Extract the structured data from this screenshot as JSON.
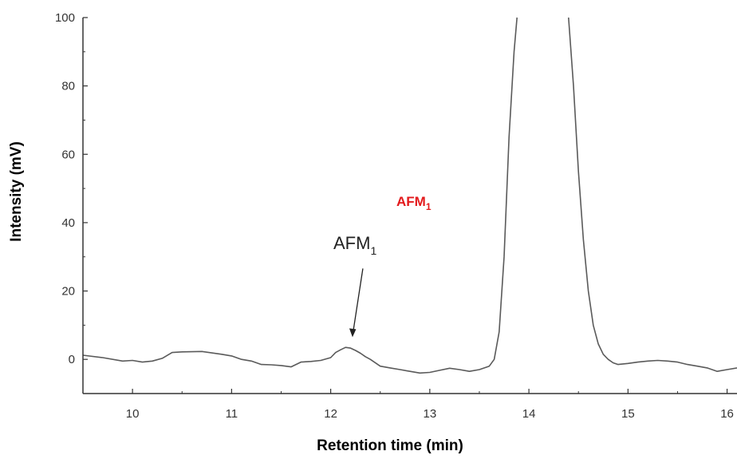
{
  "colors": {
    "trace": "#5a5a5a",
    "axis": "#333333",
    "red_label": "#e31a1c",
    "annotation": "#222222"
  },
  "chart_data": {
    "type": "line",
    "title": "",
    "xlabel": "Retention time (min)",
    "ylabel": "Intensity (mV)",
    "xlim": [
      9.5,
      16.1
    ],
    "ylim": [
      -10,
      100
    ],
    "xticks": [
      "10",
      "11",
      "12",
      "13",
      "14",
      "15",
      "16"
    ],
    "yticks": [
      "0",
      "20",
      "40",
      "60",
      "80",
      "100"
    ],
    "grid": false,
    "legend": "none",
    "series": [
      {
        "x": [
          9.5,
          9.7,
          9.9,
          10.0,
          10.1,
          10.2,
          10.3,
          10.4,
          10.5,
          10.7,
          10.9,
          11.0,
          11.1,
          11.2,
          11.3,
          11.4,
          11.5,
          11.6,
          11.7,
          11.8,
          11.9,
          12.0,
          12.05,
          12.1,
          12.15,
          12.2,
          12.25,
          12.3,
          12.35,
          12.4,
          12.5,
          12.6,
          12.7,
          12.8,
          12.9,
          13.0,
          13.1,
          13.2,
          13.3,
          13.4,
          13.5,
          13.6,
          13.65,
          13.7,
          13.75,
          13.8,
          13.85,
          13.88,
          14.4,
          14.45,
          14.5,
          14.55,
          14.6,
          14.65,
          14.7,
          14.75,
          14.8,
          14.85,
          14.9,
          15.0,
          15.1,
          15.2,
          15.3,
          15.4,
          15.5,
          15.6,
          15.7,
          15.8,
          15.9,
          16.0,
          16.1
        ],
        "y": [
          1.2,
          0.5,
          -0.5,
          -0.3,
          -0.8,
          -0.5,
          0.3,
          2.0,
          2.2,
          2.3,
          1.5,
          1.0,
          0.0,
          -0.5,
          -1.5,
          -1.6,
          -1.8,
          -2.2,
          -0.8,
          -0.6,
          -0.3,
          0.5,
          2.0,
          2.8,
          3.5,
          3.3,
          2.6,
          1.8,
          0.8,
          0.0,
          -2.0,
          -2.5,
          -3.0,
          -3.5,
          -4.0,
          -3.8,
          -3.2,
          -2.6,
          -3.0,
          -3.5,
          -3.0,
          -2.0,
          0.0,
          8.0,
          30.0,
          65.0,
          90.0,
          100.0,
          100.0,
          80.0,
          55.0,
          35.0,
          20.0,
          10.0,
          4.5,
          1.5,
          0.0,
          -1.0,
          -1.5,
          -1.2,
          -0.8,
          -0.5,
          -0.3,
          -0.5,
          -0.8,
          -1.5,
          -2.0,
          -2.5,
          -3.5,
          -3.0,
          -2.5
        ]
      }
    ],
    "annotations": [
      {
        "label": "AFM",
        "subscript": "1",
        "arrow_to_x": 12.22,
        "arrow_to_y": 6.5
      }
    ],
    "red_label": {
      "text": "AFM",
      "subscript": "1"
    }
  }
}
